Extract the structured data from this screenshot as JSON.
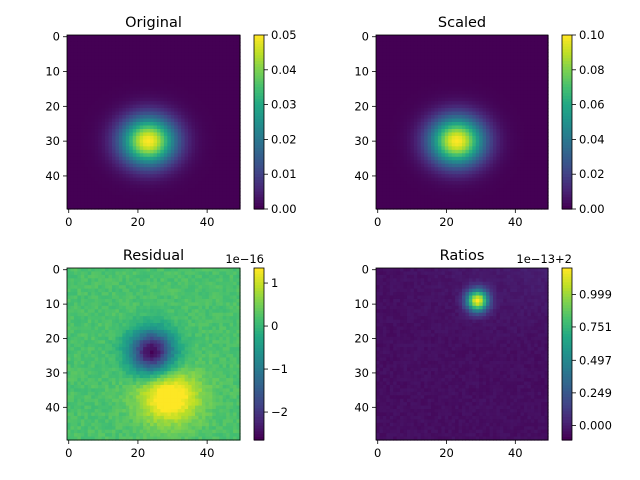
{
  "colormap": "viridis",
  "colors": {
    "text": "#000000",
    "background": "#ffffff"
  },
  "chart_data": [
    {
      "type": "heatmap",
      "title": "Original",
      "grid_size": [
        50,
        50
      ],
      "field": {
        "kind": "gaussian",
        "peak": 0.05,
        "center_x": 23,
        "center_y": 30,
        "sigma_x": 5.5,
        "sigma_y": 4.8
      },
      "xticks": [
        "0",
        "20",
        "40"
      ],
      "yticks": [
        "0",
        "10",
        "20",
        "30",
        "40"
      ],
      "colorbar": {
        "vmin": 0.0,
        "vmax": 0.05,
        "ticks": [
          "0.00",
          "0.01",
          "0.02",
          "0.03",
          "0.04",
          "0.05"
        ],
        "offset": ""
      }
    },
    {
      "type": "heatmap",
      "title": "Scaled",
      "grid_size": [
        50,
        50
      ],
      "field": {
        "kind": "gaussian",
        "peak": 0.1,
        "center_x": 23,
        "center_y": 30,
        "sigma_x": 5.5,
        "sigma_y": 4.8
      },
      "xticks": [
        "0",
        "20",
        "40"
      ],
      "yticks": [
        "0",
        "10",
        "20",
        "30",
        "40"
      ],
      "colorbar": {
        "vmin": 0.0,
        "vmax": 0.1,
        "ticks": [
          "0.00",
          "0.02",
          "0.04",
          "0.06",
          "0.08",
          "0.10"
        ],
        "offset": ""
      }
    },
    {
      "type": "heatmap",
      "title": "Residual",
      "grid_size": [
        50,
        50
      ],
      "field": {
        "kind": "dipole",
        "base": 0.2,
        "neg_amp": 2.8,
        "neg_x": 24,
        "neg_y": 24,
        "neg_sigma": 4.5,
        "pos_amp": 1.5,
        "pos_x": 29,
        "pos_y": 37,
        "pos_sigma": 6.0,
        "noise": 0.25
      },
      "xticks": [
        "0",
        "20",
        "40"
      ],
      "yticks": [
        "0",
        "10",
        "20",
        "30",
        "40"
      ],
      "colorbar": {
        "vmin": -2.65,
        "vmax": 1.35,
        "ticks": [
          "1",
          "0",
          "−1",
          "−2"
        ],
        "tick_values": [
          1,
          0,
          -1,
          -2
        ],
        "offset": "1e−16"
      }
    },
    {
      "type": "heatmap",
      "title": "Ratios",
      "grid_size": [
        50,
        50
      ],
      "field": {
        "kind": "spot",
        "base": -0.06,
        "amp": 1.25,
        "spot_x": 29,
        "spot_y": 9,
        "spot_sigma": 2.2,
        "noise": 0.04
      },
      "xticks": [
        "0",
        "20",
        "40"
      ],
      "yticks": [
        "0",
        "10",
        "20",
        "30",
        "40"
      ],
      "colorbar": {
        "vmin": -0.11,
        "vmax": 1.2,
        "ticks": [
          "0.999",
          "0.751",
          "0.497",
          "0.249",
          "0.000"
        ],
        "tick_values": [
          0.999,
          0.751,
          0.497,
          0.249,
          0.0
        ],
        "offset": "1e−13+2"
      }
    }
  ]
}
